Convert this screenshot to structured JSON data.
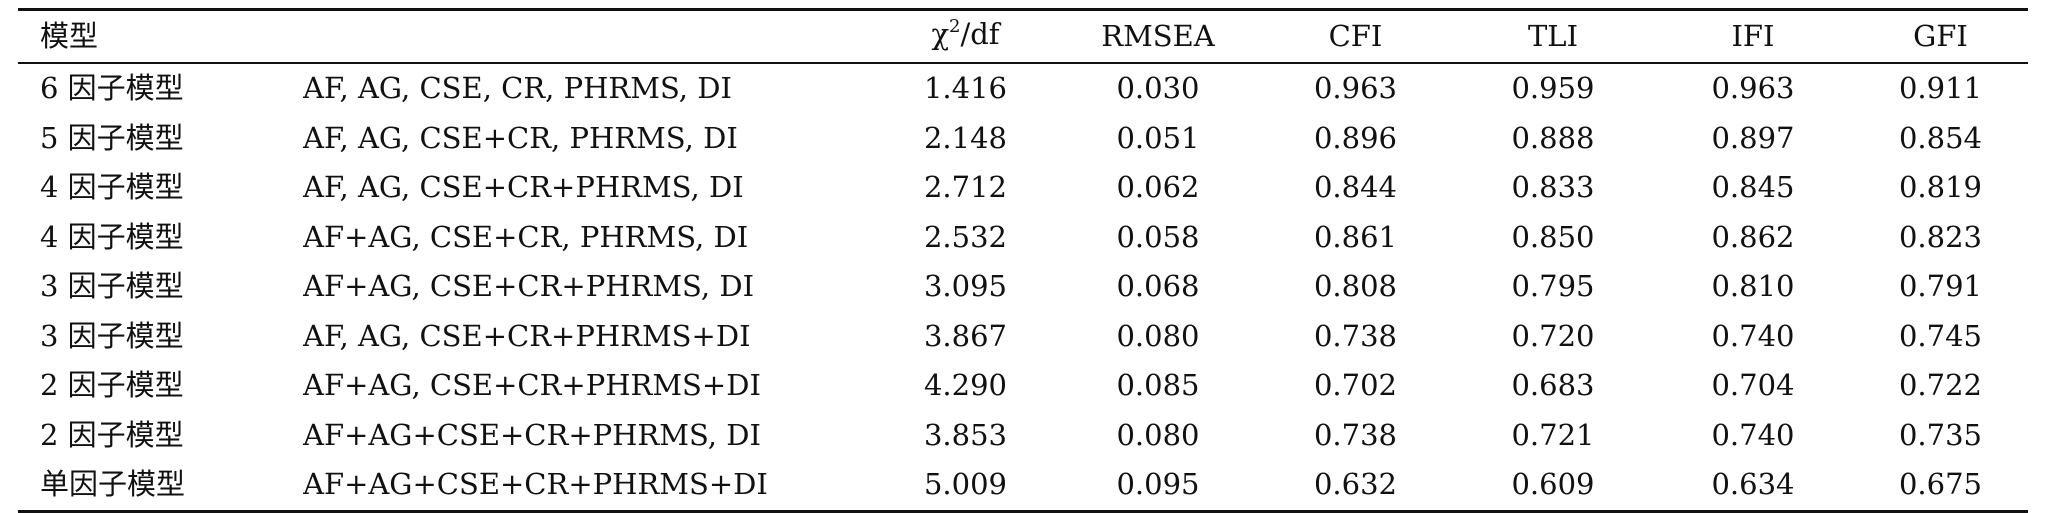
{
  "table": {
    "headers": {
      "model": "模型",
      "chi_symbol": "χ",
      "chi_sup": "2",
      "chi_suffix": "/df",
      "rmsea": "RMSEA",
      "cfi": "CFI",
      "tli": "TLI",
      "ifi": "IFI",
      "gfi": "GFI"
    },
    "rows": [
      {
        "model": "6 因子模型",
        "factors": "AF, AG, CSE, CR, PHRMS, DI",
        "chi2df": "1.416",
        "rmsea": "0.030",
        "cfi": "0.963",
        "tli": "0.959",
        "ifi": "0.963",
        "gfi": "0.911"
      },
      {
        "model": "5 因子模型",
        "factors": "AF, AG, CSE+CR, PHRMS, DI",
        "chi2df": "2.148",
        "rmsea": "0.051",
        "cfi": "0.896",
        "tli": "0.888",
        "ifi": "0.897",
        "gfi": "0.854"
      },
      {
        "model": "4 因子模型",
        "factors": "AF, AG, CSE+CR+PHRMS, DI",
        "chi2df": "2.712",
        "rmsea": "0.062",
        "cfi": "0.844",
        "tli": "0.833",
        "ifi": "0.845",
        "gfi": "0.819"
      },
      {
        "model": "4 因子模型",
        "factors": "AF+AG, CSE+CR, PHRMS, DI",
        "chi2df": "2.532",
        "rmsea": "0.058",
        "cfi": "0.861",
        "tli": "0.850",
        "ifi": "0.862",
        "gfi": "0.823"
      },
      {
        "model": "3 因子模型",
        "factors": "AF+AG, CSE+CR+PHRMS, DI",
        "chi2df": "3.095",
        "rmsea": "0.068",
        "cfi": "0.808",
        "tli": "0.795",
        "ifi": "0.810",
        "gfi": "0.791"
      },
      {
        "model": "3 因子模型",
        "factors": "AF, AG, CSE+CR+PHRMS+DI",
        "chi2df": "3.867",
        "rmsea": "0.080",
        "cfi": "0.738",
        "tli": "0.720",
        "ifi": "0.740",
        "gfi": "0.745"
      },
      {
        "model": "2 因子模型",
        "factors": "AF+AG, CSE+CR+PHRMS+DI",
        "chi2df": "4.290",
        "rmsea": "0.085",
        "cfi": "0.702",
        "tli": "0.683",
        "ifi": "0.704",
        "gfi": "0.722"
      },
      {
        "model": "2 因子模型",
        "factors": "AF+AG+CSE+CR+PHRMS, DI",
        "chi2df": "3.853",
        "rmsea": "0.080",
        "cfi": "0.738",
        "tli": "0.721",
        "ifi": "0.740",
        "gfi": "0.735"
      },
      {
        "model": "单因子模型",
        "factors": "AF+AG+CSE+CR+PHRMS+DI",
        "chi2df": "5.009",
        "rmsea": "0.095",
        "cfi": "0.632",
        "tli": "0.609",
        "ifi": "0.634",
        "gfi": "0.675"
      }
    ]
  }
}
